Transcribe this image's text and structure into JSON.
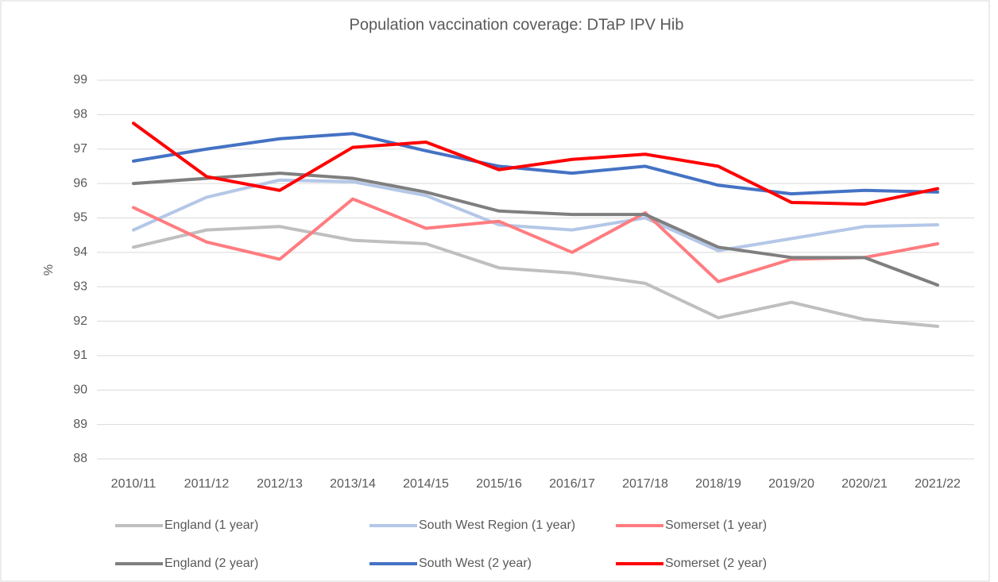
{
  "chart_data": {
    "type": "line",
    "title": "Population vaccination coverage: DTaP IPV Hib",
    "y_label": "%",
    "categories": [
      "2010/11",
      "2011/12",
      "2012/13",
      "2013/14",
      "2014/15",
      "2015/16",
      "2016/17",
      "2017/18",
      "2018/19",
      "2019/20",
      "2020/21",
      "2021/22"
    ],
    "series": [
      {
        "name": "England (1 year)",
        "color": "#bfbfbf",
        "values": [
          94.15,
          94.65,
          94.75,
          94.35,
          94.25,
          93.55,
          93.4,
          93.1,
          92.1,
          92.55,
          92.05,
          91.85
        ]
      },
      {
        "name": "South West Region (1 year)",
        "color": "#b4c7e7",
        "values": [
          94.65,
          95.6,
          96.1,
          96.05,
          95.65,
          94.8,
          94.65,
          95.0,
          94.05,
          94.4,
          94.75,
          94.8
        ]
      },
      {
        "name": "Somerset (1 year)",
        "color": "#ff7c80",
        "values": [
          95.3,
          94.3,
          93.8,
          95.55,
          94.7,
          94.9,
          94.0,
          95.15,
          93.15,
          93.8,
          93.85,
          94.25
        ]
      },
      {
        "name": "England (2 year)",
        "color": "#7f7f7f",
        "values": [
          96.0,
          96.15,
          96.3,
          96.15,
          95.75,
          95.2,
          95.1,
          95.1,
          94.15,
          93.85,
          93.85,
          93.05
        ]
      },
      {
        "name": "South West (2 year)",
        "color": "#4472c4",
        "values": [
          96.65,
          97.0,
          97.3,
          97.45,
          96.95,
          96.5,
          96.3,
          96.5,
          95.95,
          95.7,
          95.8,
          95.75
        ]
      },
      {
        "name": "Somerset (2 year)",
        "color": "#ff0000",
        "values": [
          97.75,
          96.2,
          95.8,
          97.05,
          97.2,
          96.4,
          96.7,
          96.85,
          96.5,
          95.45,
          95.4,
          95.85
        ]
      }
    ],
    "ylim": [
      88,
      99
    ],
    "yticks": [
      88,
      89,
      90,
      91,
      92,
      93,
      94,
      95,
      96,
      97,
      98,
      99
    ],
    "grid": true
  }
}
